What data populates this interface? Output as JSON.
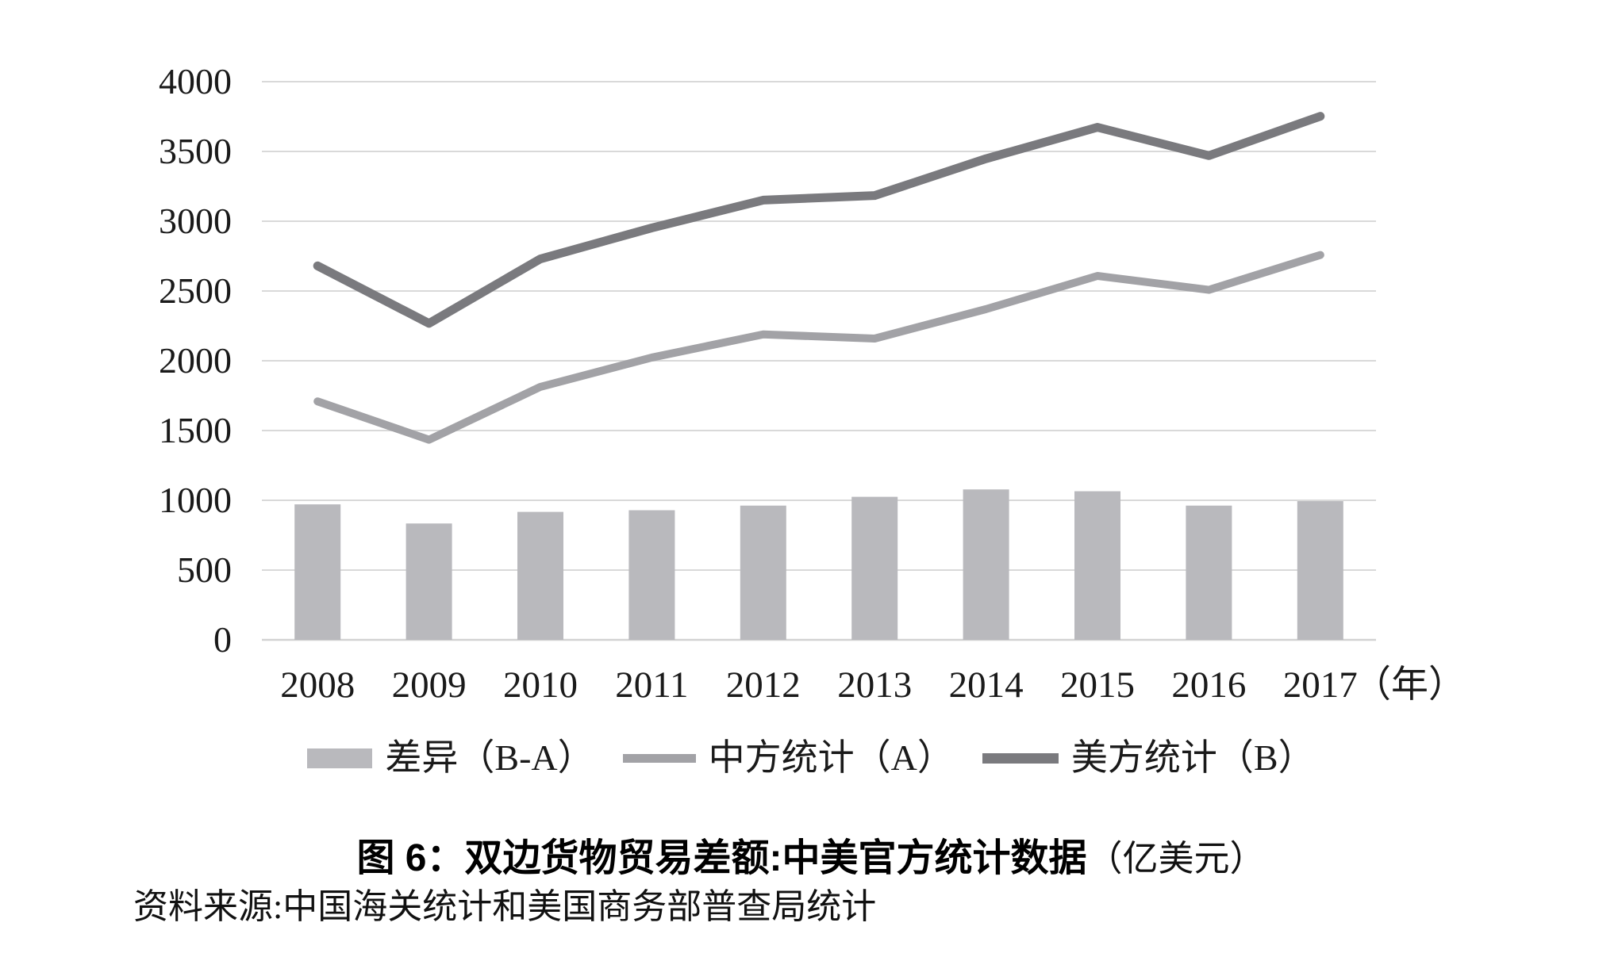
{
  "chart_data": {
    "type": "combo",
    "subtypes": [
      "bar",
      "line",
      "line"
    ],
    "title": "图 6：双边货物贸易差额:中美官方统计数据（亿美元）",
    "categories": [
      "2008",
      "2009",
      "2010",
      "2011",
      "2012",
      "2013",
      "2014",
      "2015",
      "2016",
      "2017"
    ],
    "series": [
      {
        "name": "差异（B-A）",
        "type": "bar",
        "color": "#b9b9bd",
        "values": [
          971,
          834,
          917,
          929,
          962,
          1025,
          1078,
          1065,
          962,
          994
        ]
      },
      {
        "name": "中方统计（A）",
        "type": "line",
        "color": "#a2a2a6",
        "stroke_width": 10,
        "values": [
          1709,
          1434,
          1813,
          2023,
          2189,
          2159,
          2370,
          2608,
          2508,
          2758
        ]
      },
      {
        "name": "美方统计（B）",
        "type": "line",
        "color": "#7a7a7e",
        "stroke_width": 11,
        "values": [
          2680,
          2268,
          2730,
          2952,
          3151,
          3184,
          3448,
          3673,
          3470,
          3752
        ]
      }
    ],
    "xlabel": "",
    "ylabel": "",
    "x_axis_unit": "（年）",
    "ylim": [
      0,
      4000
    ],
    "ytick_step": 500,
    "yticks": [
      0,
      500,
      1000,
      1500,
      2000,
      2500,
      3000,
      3500,
      4000
    ],
    "grid": "horizontal",
    "gridline_color": "#d9d9d9",
    "legend_position": "bottom"
  },
  "caption": {
    "main": "图 6：双边货物贸易差额:中美官方统计数据",
    "unit": "（亿美元）"
  },
  "source_note": "资料来源:中国海关统计和美国商务部普查局统计"
}
